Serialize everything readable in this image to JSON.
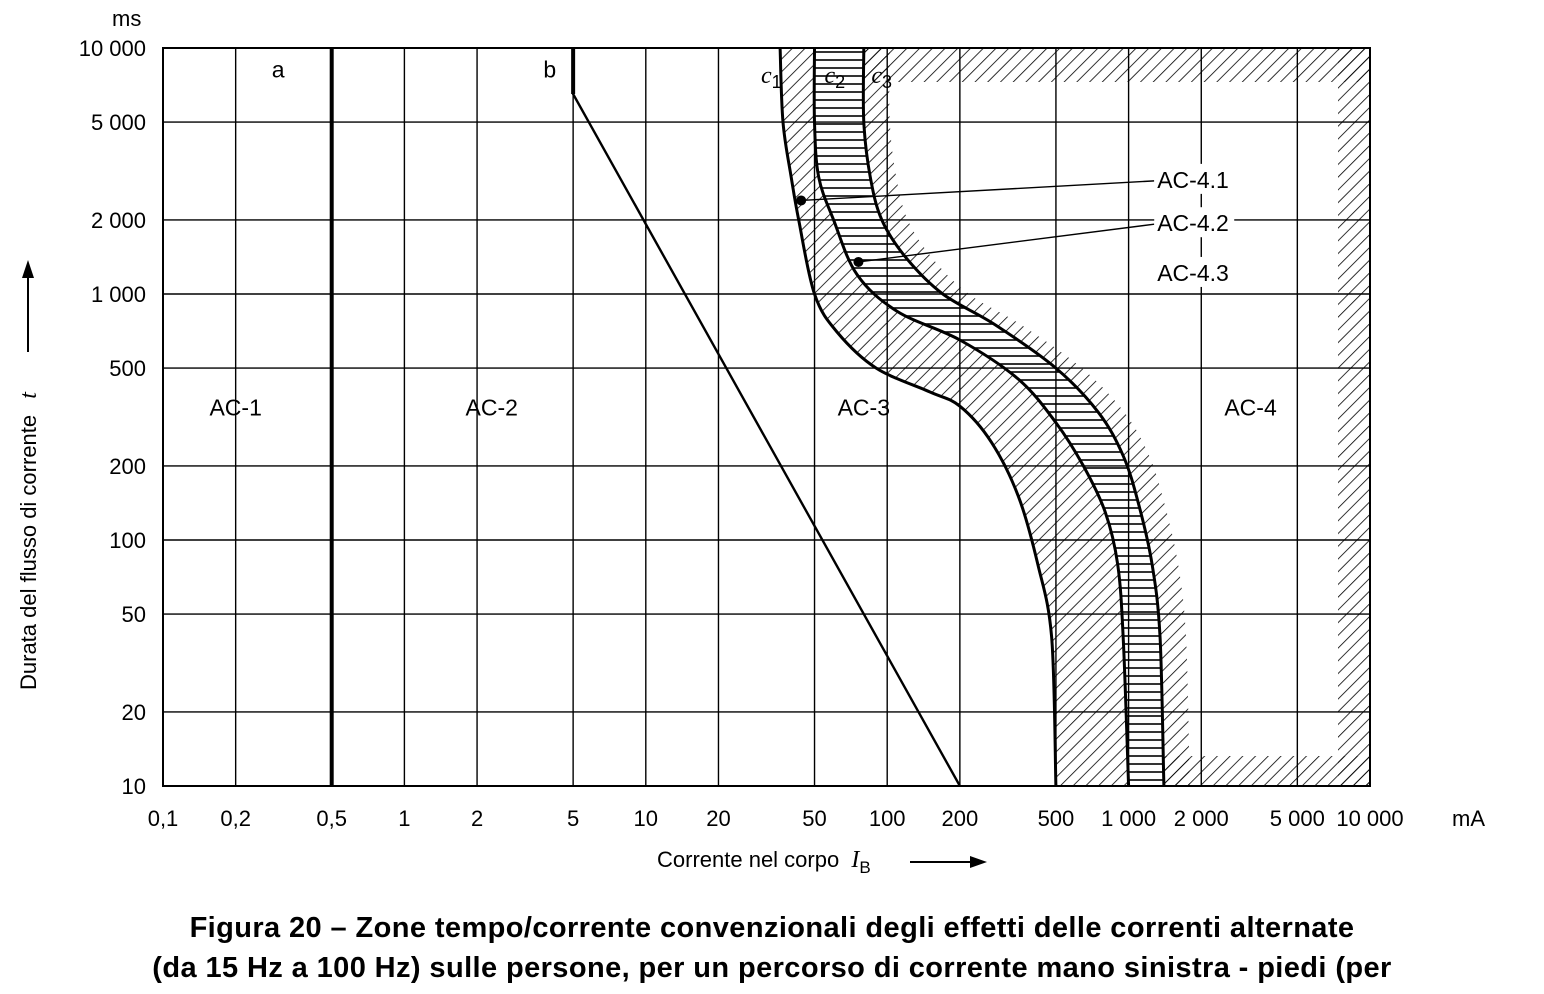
{
  "chart_data": {
    "type": "line",
    "title": "",
    "xlabel": "Corrente nel corpo",
    "xlabel_symbol": "I",
    "xlabel_subscript": "B",
    "xunit": "mA",
    "ylabel": "Durata del flusso di corrente",
    "ylabel_symbol": "t",
    "yunit": "ms",
    "x_scale": "log",
    "y_scale": "log",
    "xlim": [
      0.1,
      10000
    ],
    "ylim": [
      10,
      10000
    ],
    "grid": true,
    "x_ticks": [
      {
        "value": 0.1,
        "label": "0,1"
      },
      {
        "value": 0.2,
        "label": "0,2"
      },
      {
        "value": 0.5,
        "label": "0,5"
      },
      {
        "value": 1,
        "label": "1"
      },
      {
        "value": 2,
        "label": "2"
      },
      {
        "value": 5,
        "label": "5"
      },
      {
        "value": 10,
        "label": "10"
      },
      {
        "value": 20,
        "label": "20"
      },
      {
        "value": 50,
        "label": "50"
      },
      {
        "value": 100,
        "label": "100"
      },
      {
        "value": 200,
        "label": "200"
      },
      {
        "value": 500,
        "label": "500"
      },
      {
        "value": 1000,
        "label": "1 000"
      },
      {
        "value": 2000,
        "label": "2 000"
      },
      {
        "value": 5000,
        "label": "5 000"
      },
      {
        "value": 10000,
        "label": "10 000"
      }
    ],
    "y_ticks": [
      {
        "value": 10,
        "label": "10"
      },
      {
        "value": 20,
        "label": "20"
      },
      {
        "value": 50,
        "label": "50"
      },
      {
        "value": 100,
        "label": "100"
      },
      {
        "value": 200,
        "label": "200"
      },
      {
        "value": 500,
        "label": "500"
      },
      {
        "value": 1000,
        "label": "1 000"
      },
      {
        "value": 2000,
        "label": "2 000"
      },
      {
        "value": 5000,
        "label": "5 000"
      },
      {
        "value": 10000,
        "label": "10 000"
      }
    ],
    "series": [
      {
        "name": "a",
        "points": [
          [
            0.5,
            10
          ],
          [
            0.5,
            10000
          ]
        ]
      },
      {
        "name": "b",
        "points": [
          [
            5,
            10000
          ],
          [
            5,
            6500
          ],
          [
            200,
            10
          ]
        ]
      },
      {
        "name": "c1",
        "points": [
          [
            36,
            10000
          ],
          [
            37,
            5000
          ],
          [
            40,
            3000
          ],
          [
            43,
            2000
          ],
          [
            50,
            1000
          ],
          [
            62,
            700
          ],
          [
            90,
            500
          ],
          [
            150,
            400
          ],
          [
            200,
            350
          ],
          [
            270,
            250
          ],
          [
            350,
            150
          ],
          [
            420,
            80
          ],
          [
            480,
            40
          ],
          [
            500,
            10
          ]
        ]
      },
      {
        "name": "c2",
        "points": [
          [
            50,
            10000
          ],
          [
            50,
            5000
          ],
          [
            52,
            3000
          ],
          [
            60,
            2000
          ],
          [
            75,
            1200
          ],
          [
            110,
            850
          ],
          [
            200,
            650
          ],
          [
            350,
            450
          ],
          [
            500,
            300
          ],
          [
            650,
            200
          ],
          [
            800,
            130
          ],
          [
            900,
            80
          ],
          [
            950,
            40
          ],
          [
            1000,
            10
          ]
        ]
      },
      {
        "name": "c3",
        "points": [
          [
            80,
            10000
          ],
          [
            80,
            5000
          ],
          [
            85,
            3000
          ],
          [
            95,
            2000
          ],
          [
            120,
            1400
          ],
          [
            170,
            1000
          ],
          [
            280,
            750
          ],
          [
            500,
            500
          ],
          [
            750,
            330
          ],
          [
            950,
            220
          ],
          [
            1100,
            140
          ],
          [
            1250,
            80
          ],
          [
            1350,
            40
          ],
          [
            1400,
            10
          ]
        ]
      }
    ],
    "curve_labels": [
      {
        "id": "a",
        "text": "a"
      },
      {
        "id": "b",
        "text": "b"
      },
      {
        "id": "c1",
        "text": "c",
        "sub": "1"
      },
      {
        "id": "c2",
        "text": "c",
        "sub": "2"
      },
      {
        "id": "c3",
        "text": "c",
        "sub": "3"
      }
    ],
    "zones": [
      {
        "name": "AC-1",
        "x": 0.2,
        "y": 320
      },
      {
        "name": "AC-2",
        "x": 2.3,
        "y": 320
      },
      {
        "name": "AC-3",
        "x": 80,
        "y": 320
      },
      {
        "name": "AC-4",
        "x": 3200,
        "y": 320
      }
    ],
    "subzones": [
      {
        "name": "AC-4.1",
        "point": [
          44,
          2400
        ],
        "label_at": [
          1800,
          2700
        ]
      },
      {
        "name": "AC-4.2",
        "point": [
          76,
          1350
        ],
        "label_at": [
          1800,
          1800
        ]
      },
      {
        "name": "AC-4.3",
        "point": null,
        "label_at": [
          1800,
          1130
        ]
      }
    ]
  },
  "caption": {
    "lines": [
      "Figura 20 – Zone tempo/corrente convenzionali degli effetti delle correnti alternate",
      "(da 15 Hz a 100 Hz) sulle persone, per un percorso di corrente mano sinistra - piedi (per"
    ]
  }
}
